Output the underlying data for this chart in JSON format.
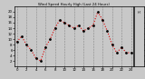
{
  "title": "Wind Speed Hourly High (Last 24 Hours)",
  "background_color": "#c8c8c8",
  "plot_bg_color": "#c8c8c8",
  "line_color": "#dd0000",
  "marker_color": "#000000",
  "grid_color": "#888888",
  "x_values": [
    0,
    1,
    2,
    3,
    4,
    5,
    6,
    7,
    8,
    9,
    10,
    11,
    12,
    13,
    14,
    15,
    16,
    17,
    18,
    19,
    20,
    21,
    22,
    23,
    24
  ],
  "y_values": [
    9,
    11,
    8,
    6,
    3,
    2,
    7,
    10,
    14,
    17,
    16,
    15,
    14,
    15,
    13,
    14,
    15,
    20,
    17,
    13,
    8,
    5,
    7,
    5,
    5
  ],
  "ylim_min": 0,
  "ylim_max": 22,
  "xlim_min": -0.5,
  "xlim_max": 24.5,
  "ytick_values": [
    2,
    4,
    6,
    8,
    10,
    12,
    14,
    16,
    18,
    20
  ],
  "ytick_labels": [
    "2",
    "4",
    "6",
    "8",
    "10",
    "12",
    "14",
    "16",
    "18",
    "20"
  ],
  "xtick_values": [
    0,
    2,
    4,
    6,
    8,
    10,
    12,
    14,
    16,
    18,
    20,
    22,
    24
  ],
  "xtick_labels": [
    "0",
    "2",
    "4",
    "6",
    "8",
    "10",
    "12",
    "14",
    "16",
    "18",
    "20",
    "22",
    "24"
  ],
  "legend_label": "Hi",
  "legend_color": "#dd0000",
  "grid_x_positions": [
    0,
    2,
    4,
    6,
    8,
    10,
    12,
    14,
    16,
    18,
    20,
    22,
    24
  ]
}
